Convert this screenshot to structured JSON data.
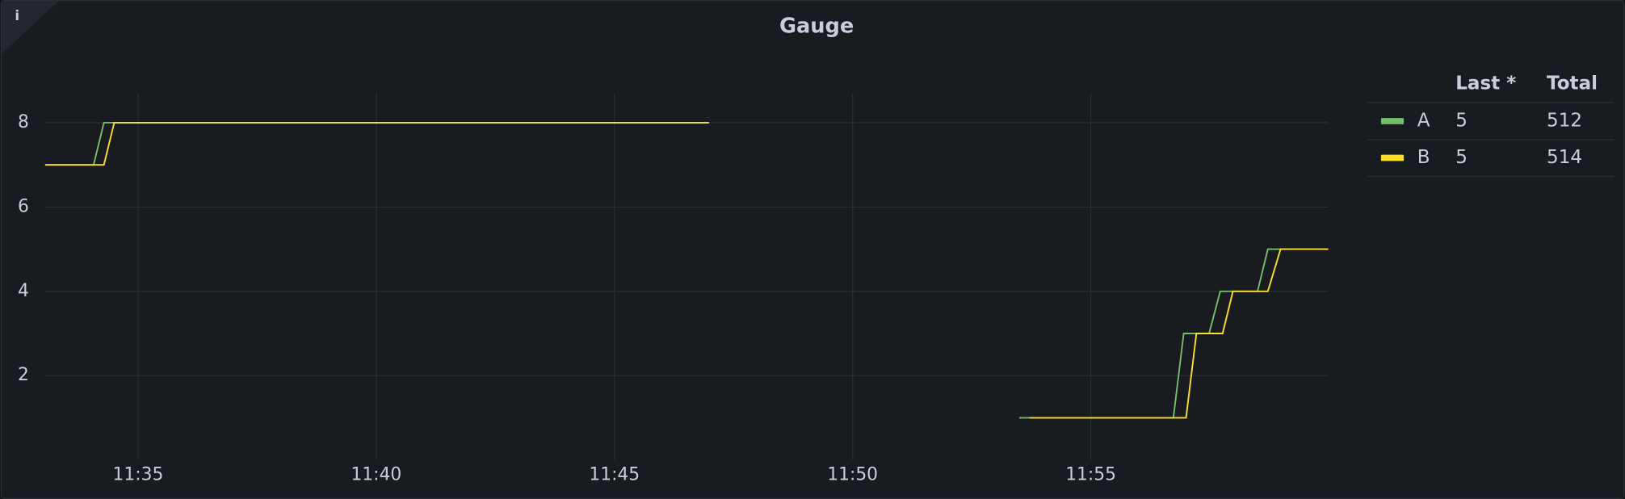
{
  "chart_data": {
    "type": "line",
    "title": "Gauge",
    "xlim": [
      "11:33:03",
      "11:59:59"
    ],
    "xticks": [
      "11:35",
      "11:40",
      "11:45",
      "11:50",
      "11:55"
    ],
    "ylim": [
      0,
      8.7
    ],
    "yticks": [
      2,
      4,
      6,
      8
    ],
    "grid": true,
    "legend": {
      "position": "right",
      "columns": [
        "Last *",
        "Total"
      ]
    },
    "series": [
      {
        "name": "A",
        "color": "#73bf69",
        "last": 5,
        "total": 512,
        "x": [
          "11:33:03",
          "11:34:04",
          "11:34:17",
          "11:46:59",
          "11:50:00",
          "11:53:30",
          "11:56:44",
          "11:56:57",
          "11:57:29",
          "11:57:43",
          "11:58:30",
          "11:58:43",
          "11:59:59"
        ],
        "values": [
          7,
          7,
          8,
          8,
          null,
          1,
          1,
          3,
          3,
          4,
          4,
          5,
          5
        ]
      },
      {
        "name": "B",
        "color": "#fade2a",
        "last": 5,
        "total": 514,
        "x": [
          "11:33:03",
          "11:34:17",
          "11:34:30",
          "11:46:59",
          "11:50:00",
          "11:53:43",
          "11:57:00",
          "11:57:13",
          "11:57:46",
          "11:57:59",
          "11:58:43",
          "11:58:59",
          "11:59:59"
        ],
        "values": [
          7,
          7,
          8,
          8,
          null,
          1,
          1,
          3,
          3,
          4,
          4,
          5,
          5
        ]
      }
    ]
  }
}
